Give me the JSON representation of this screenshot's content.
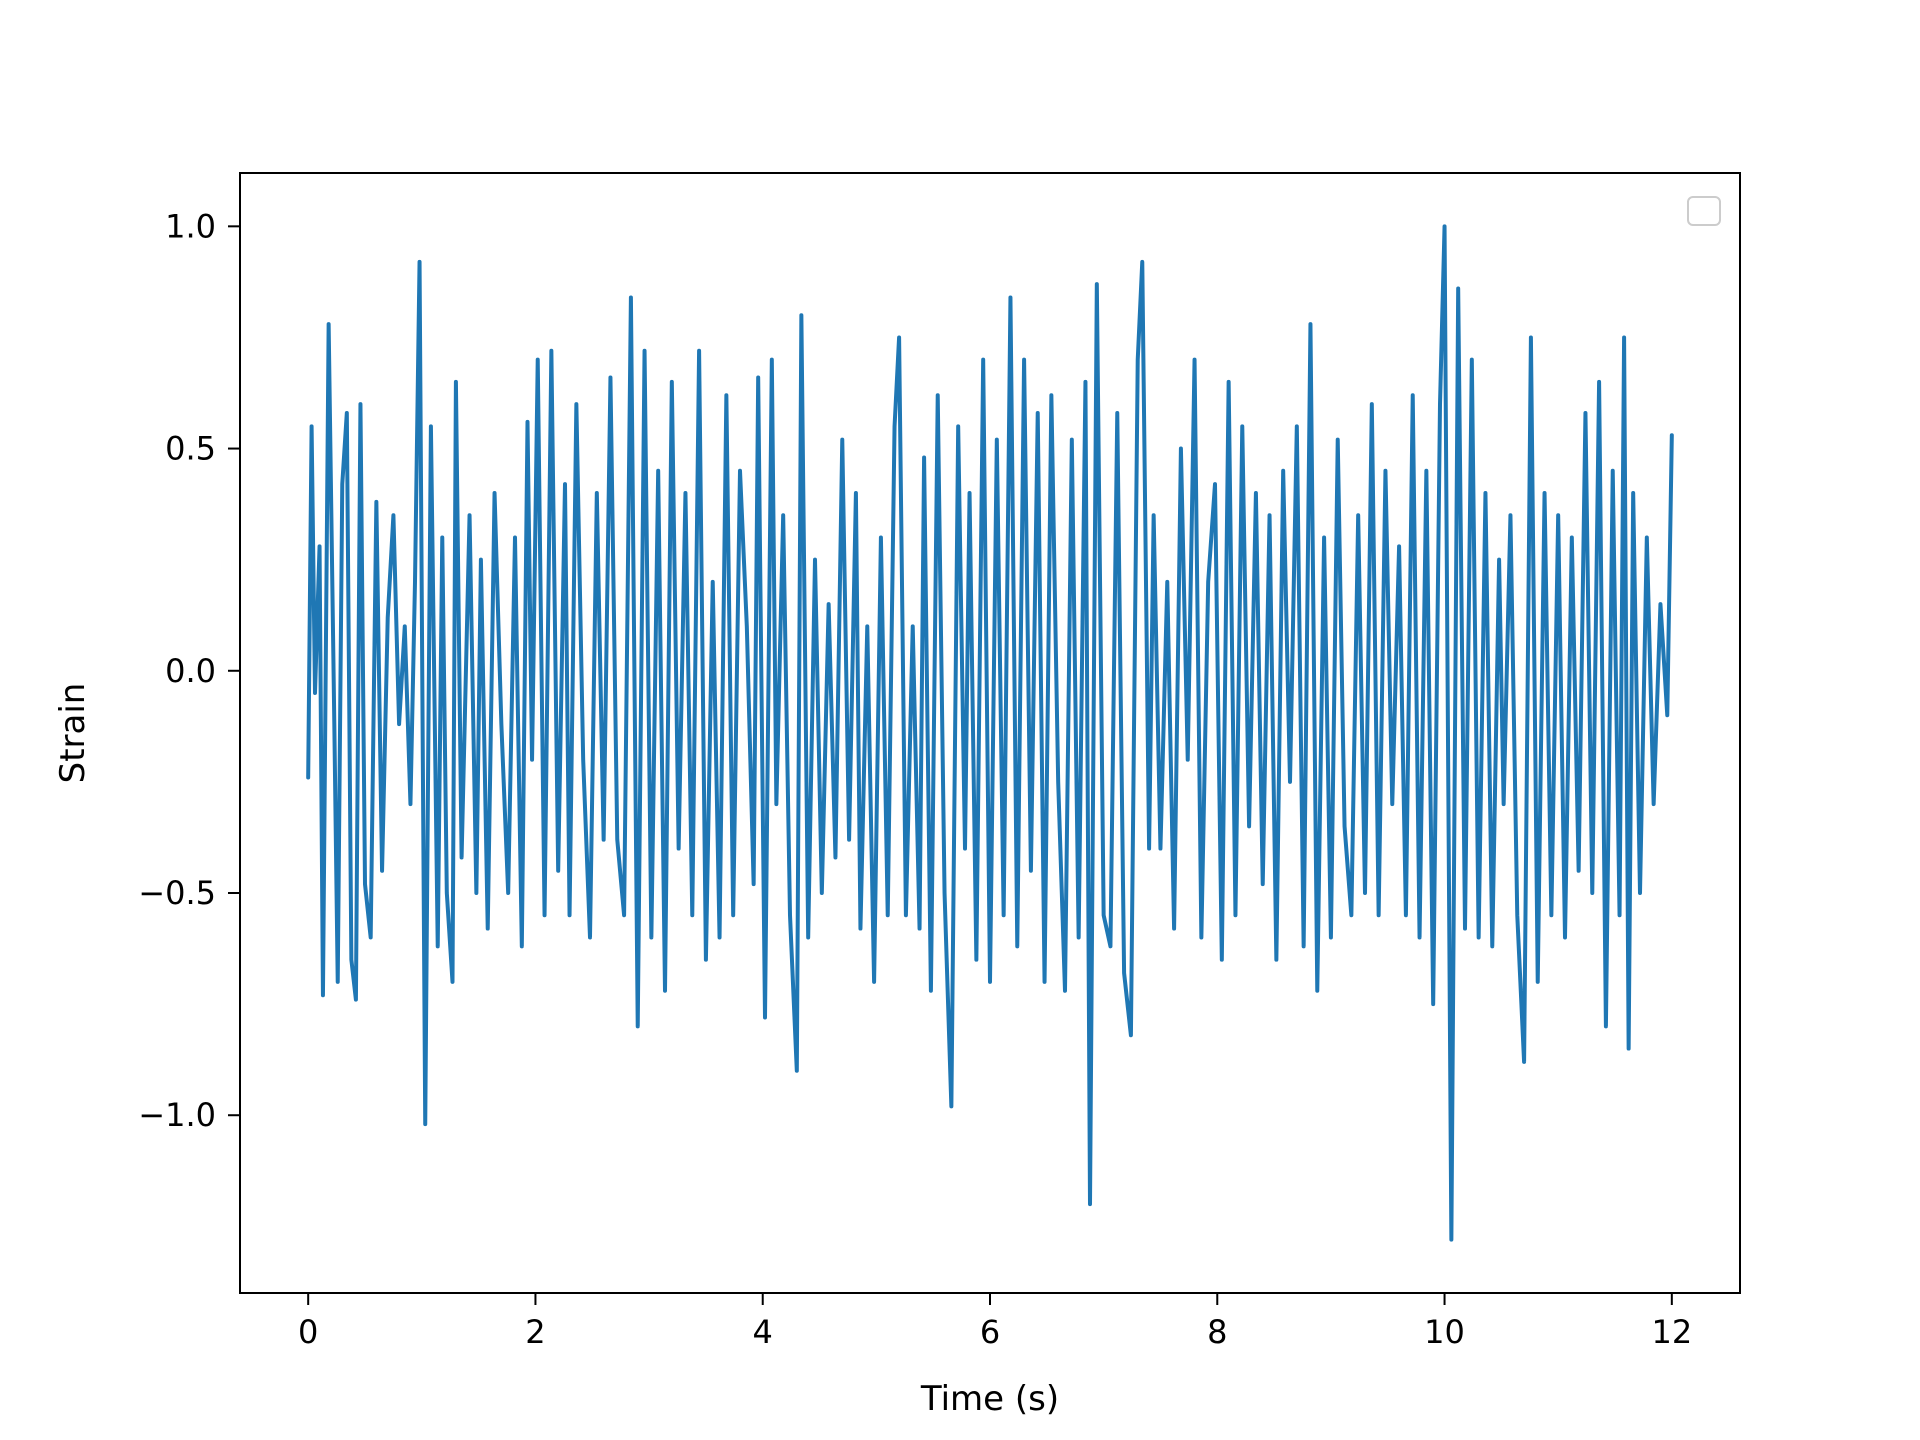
{
  "chart_data": {
    "type": "line",
    "title": "",
    "xlabel": "Time (s)",
    "ylabel": "Strain",
    "xlim": [
      -0.6,
      12.6
    ],
    "ylim": [
      -1.4,
      1.12
    ],
    "xticks": [
      0,
      2,
      4,
      6,
      8,
      10,
      12
    ],
    "yticks": [
      1.0,
      0.5,
      0.0,
      -0.5,
      -1.0
    ],
    "xtick_labels": [
      "0",
      "2",
      "4",
      "6",
      "8",
      "10",
      "12"
    ],
    "ytick_labels": [
      "1.0",
      "0.5",
      "0.0",
      "−0.5",
      "−1.0"
    ],
    "grid": false,
    "legend": {
      "visible": true,
      "placement": "top-right",
      "entries": []
    },
    "series": [
      {
        "color": "#1f77b4",
        "x_range": [
          0,
          12
        ],
        "points": [
          [
            0.0,
            -0.24
          ],
          [
            0.03,
            0.55
          ],
          [
            0.06,
            -0.05
          ],
          [
            0.1,
            0.28
          ],
          [
            0.13,
            -0.73
          ],
          [
            0.18,
            0.78
          ],
          [
            0.23,
            -0.12
          ],
          [
            0.26,
            -0.7
          ],
          [
            0.3,
            0.42
          ],
          [
            0.34,
            0.58
          ],
          [
            0.38,
            -0.65
          ],
          [
            0.42,
            -0.74
          ],
          [
            0.46,
            0.6
          ],
          [
            0.5,
            -0.48
          ],
          [
            0.55,
            -0.6
          ],
          [
            0.6,
            0.38
          ],
          [
            0.65,
            -0.45
          ],
          [
            0.7,
            0.12
          ],
          [
            0.75,
            0.35
          ],
          [
            0.8,
            -0.12
          ],
          [
            0.85,
            0.1
          ],
          [
            0.9,
            -0.3
          ],
          [
            0.94,
            0.2
          ],
          [
            0.98,
            0.92
          ],
          [
            1.03,
            -1.02
          ],
          [
            1.08,
            0.55
          ],
          [
            1.14,
            -0.62
          ],
          [
            1.18,
            0.3
          ],
          [
            1.22,
            -0.5
          ],
          [
            1.27,
            -0.7
          ],
          [
            1.3,
            0.65
          ],
          [
            1.35,
            -0.42
          ],
          [
            1.42,
            0.35
          ],
          [
            1.48,
            -0.5
          ],
          [
            1.52,
            0.25
          ],
          [
            1.58,
            -0.58
          ],
          [
            1.64,
            0.4
          ],
          [
            1.7,
            -0.12
          ],
          [
            1.76,
            -0.5
          ],
          [
            1.82,
            0.3
          ],
          [
            1.88,
            -0.62
          ],
          [
            1.93,
            0.56
          ],
          [
            1.97,
            -0.2
          ],
          [
            2.02,
            0.7
          ],
          [
            2.08,
            -0.55
          ],
          [
            2.14,
            0.72
          ],
          [
            2.2,
            -0.45
          ],
          [
            2.26,
            0.42
          ],
          [
            2.3,
            -0.55
          ],
          [
            2.36,
            0.6
          ],
          [
            2.42,
            -0.2
          ],
          [
            2.48,
            -0.6
          ],
          [
            2.54,
            0.4
          ],
          [
            2.6,
            -0.38
          ],
          [
            2.66,
            0.66
          ],
          [
            2.72,
            -0.38
          ],
          [
            2.78,
            -0.55
          ],
          [
            2.84,
            0.84
          ],
          [
            2.9,
            -0.8
          ],
          [
            2.96,
            0.72
          ],
          [
            3.02,
            -0.6
          ],
          [
            3.08,
            0.45
          ],
          [
            3.14,
            -0.72
          ],
          [
            3.2,
            0.65
          ],
          [
            3.26,
            -0.4
          ],
          [
            3.32,
            0.4
          ],
          [
            3.38,
            -0.55
          ],
          [
            3.44,
            0.72
          ],
          [
            3.5,
            -0.65
          ],
          [
            3.56,
            0.2
          ],
          [
            3.62,
            -0.6
          ],
          [
            3.68,
            0.62
          ],
          [
            3.74,
            -0.55
          ],
          [
            3.8,
            0.45
          ],
          [
            3.86,
            0.1
          ],
          [
            3.92,
            -0.48
          ],
          [
            3.96,
            0.66
          ],
          [
            4.02,
            -0.78
          ],
          [
            4.08,
            0.7
          ],
          [
            4.12,
            -0.3
          ],
          [
            4.18,
            0.35
          ],
          [
            4.24,
            -0.55
          ],
          [
            4.3,
            -0.9
          ],
          [
            4.34,
            0.8
          ],
          [
            4.4,
            -0.6
          ],
          [
            4.46,
            0.25
          ],
          [
            4.52,
            -0.5
          ],
          [
            4.58,
            0.15
          ],
          [
            4.64,
            -0.42
          ],
          [
            4.7,
            0.52
          ],
          [
            4.76,
            -0.38
          ],
          [
            4.82,
            0.4
          ],
          [
            4.86,
            -0.58
          ],
          [
            4.92,
            0.1
          ],
          [
            4.98,
            -0.7
          ],
          [
            5.04,
            0.3
          ],
          [
            5.1,
            -0.55
          ],
          [
            5.16,
            0.55
          ],
          [
            5.2,
            0.75
          ],
          [
            5.26,
            -0.55
          ],
          [
            5.32,
            0.1
          ],
          [
            5.38,
            -0.58
          ],
          [
            5.42,
            0.48
          ],
          [
            5.48,
            -0.72
          ],
          [
            5.54,
            0.62
          ],
          [
            5.6,
            -0.5
          ],
          [
            5.66,
            -0.98
          ],
          [
            5.72,
            0.55
          ],
          [
            5.78,
            -0.4
          ],
          [
            5.82,
            0.4
          ],
          [
            5.88,
            -0.65
          ],
          [
            5.94,
            0.7
          ],
          [
            6.0,
            -0.7
          ],
          [
            6.06,
            0.52
          ],
          [
            6.12,
            -0.55
          ],
          [
            6.18,
            0.84
          ],
          [
            6.24,
            -0.62
          ],
          [
            6.3,
            0.7
          ],
          [
            6.36,
            -0.45
          ],
          [
            6.42,
            0.58
          ],
          [
            6.48,
            -0.7
          ],
          [
            6.54,
            0.62
          ],
          [
            6.6,
            -0.25
          ],
          [
            6.66,
            -0.72
          ],
          [
            6.72,
            0.52
          ],
          [
            6.78,
            -0.6
          ],
          [
            6.84,
            0.65
          ],
          [
            6.88,
            -1.2
          ],
          [
            6.94,
            0.87
          ],
          [
            7.0,
            -0.55
          ],
          [
            7.06,
            -0.62
          ],
          [
            7.12,
            0.58
          ],
          [
            7.18,
            -0.68
          ],
          [
            7.24,
            -0.82
          ],
          [
            7.3,
            0.7
          ],
          [
            7.34,
            0.92
          ],
          [
            7.4,
            -0.4
          ],
          [
            7.44,
            0.35
          ],
          [
            7.5,
            -0.4
          ],
          [
            7.56,
            0.2
          ],
          [
            7.62,
            -0.58
          ],
          [
            7.68,
            0.5
          ],
          [
            7.74,
            -0.2
          ],
          [
            7.8,
            0.7
          ],
          [
            7.86,
            -0.6
          ],
          [
            7.92,
            0.2
          ],
          [
            7.98,
            0.42
          ],
          [
            8.04,
            -0.65
          ],
          [
            8.1,
            0.65
          ],
          [
            8.16,
            -0.55
          ],
          [
            8.22,
            0.55
          ],
          [
            8.28,
            -0.35
          ],
          [
            8.34,
            0.4
          ],
          [
            8.4,
            -0.48
          ],
          [
            8.46,
            0.35
          ],
          [
            8.52,
            -0.65
          ],
          [
            8.58,
            0.45
          ],
          [
            8.64,
            -0.25
          ],
          [
            8.7,
            0.55
          ],
          [
            8.76,
            -0.62
          ],
          [
            8.82,
            0.78
          ],
          [
            8.88,
            -0.72
          ],
          [
            8.94,
            0.3
          ],
          [
            9.0,
            -0.6
          ],
          [
            9.06,
            0.52
          ],
          [
            9.12,
            -0.35
          ],
          [
            9.18,
            -0.55
          ],
          [
            9.24,
            0.35
          ],
          [
            9.3,
            -0.5
          ],
          [
            9.36,
            0.6
          ],
          [
            9.42,
            -0.55
          ],
          [
            9.48,
            0.45
          ],
          [
            9.54,
            -0.3
          ],
          [
            9.6,
            0.28
          ],
          [
            9.66,
            -0.55
          ],
          [
            9.72,
            0.62
          ],
          [
            9.78,
            -0.6
          ],
          [
            9.84,
            0.45
          ],
          [
            9.9,
            -0.75
          ],
          [
            9.96,
            0.6
          ],
          [
            10.0,
            1.0
          ],
          [
            10.06,
            -1.28
          ],
          [
            10.12,
            0.86
          ],
          [
            10.18,
            -0.58
          ],
          [
            10.24,
            0.7
          ],
          [
            10.3,
            -0.6
          ],
          [
            10.36,
            0.4
          ],
          [
            10.42,
            -0.62
          ],
          [
            10.48,
            0.25
          ],
          [
            10.52,
            -0.3
          ],
          [
            10.58,
            0.35
          ],
          [
            10.64,
            -0.55
          ],
          [
            10.7,
            -0.88
          ],
          [
            10.76,
            0.75
          ],
          [
            10.82,
            -0.7
          ],
          [
            10.88,
            0.4
          ],
          [
            10.94,
            -0.55
          ],
          [
            11.0,
            0.35
          ],
          [
            11.06,
            -0.6
          ],
          [
            11.12,
            0.3
          ],
          [
            11.18,
            -0.45
          ],
          [
            11.24,
            0.58
          ],
          [
            11.3,
            -0.5
          ],
          [
            11.36,
            0.65
          ],
          [
            11.42,
            -0.8
          ],
          [
            11.48,
            0.45
          ],
          [
            11.54,
            -0.55
          ],
          [
            11.58,
            0.75
          ],
          [
            11.62,
            -0.85
          ],
          [
            11.66,
            0.4
          ],
          [
            11.72,
            -0.5
          ],
          [
            11.78,
            0.3
          ],
          [
            11.84,
            -0.3
          ],
          [
            11.9,
            0.15
          ],
          [
            11.96,
            -0.1
          ],
          [
            12.0,
            0.53
          ]
        ]
      }
    ]
  }
}
